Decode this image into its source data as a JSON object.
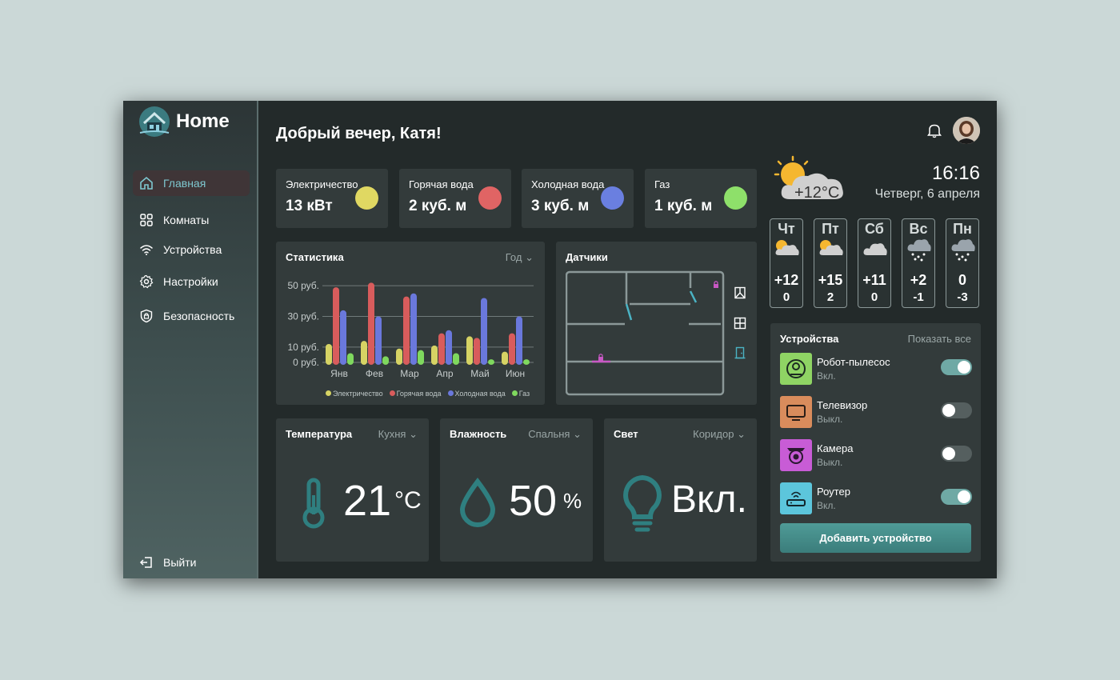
{
  "app": {
    "title": "Home"
  },
  "sidebar": {
    "items": [
      {
        "label": "Главная",
        "icon": "home-icon"
      },
      {
        "label": "Комнаты",
        "icon": "grid-icon"
      },
      {
        "label": "Устройства",
        "icon": "wifi-icon"
      },
      {
        "label": "Настройки",
        "icon": "gear-icon"
      },
      {
        "label": "Безопасность",
        "icon": "shield-icon"
      }
    ],
    "logout": "Выйти"
  },
  "header": {
    "greeting": "Добрый вечер, Катя!"
  },
  "utilities": [
    {
      "label": "Электричество",
      "value": "13 кВт",
      "color": "#e0d862"
    },
    {
      "label": "Горячая вода",
      "value": "2 куб. м",
      "color": "#e06464"
    },
    {
      "label": "Холодная вода",
      "value": "3 куб. м",
      "color": "#6a7fe0"
    },
    {
      "label": "Газ",
      "value": "1 куб. м",
      "color": "#8ee06a"
    }
  ],
  "stats": {
    "title": "Статистика",
    "period": "Год",
    "legend": [
      "Электричество",
      "Горячая вода",
      "Холодная вода",
      "Газ"
    ]
  },
  "chart_data": {
    "type": "bar",
    "categories": [
      "Янв",
      "Фев",
      "Мар",
      "Апр",
      "Май",
      "Июн"
    ],
    "ytick_labels": [
      "0 руб.",
      "10 руб.",
      "30 руб.",
      "50 руб."
    ],
    "yticks": [
      0,
      10,
      30,
      50
    ],
    "ylim": [
      0,
      60
    ],
    "series": [
      {
        "name": "Электричество",
        "color": "#d6d364",
        "values": [
          12,
          14,
          9,
          11,
          17,
          7
        ]
      },
      {
        "name": "Горячая вода",
        "color": "#d85c5c",
        "values": [
          49,
          52,
          43,
          19,
          16,
          19
        ]
      },
      {
        "name": "Холодная вода",
        "color": "#6a78dc",
        "values": [
          34,
          30,
          45,
          21,
          42,
          30
        ]
      },
      {
        "name": "Газ",
        "color": "#7fd85e",
        "values": [
          6,
          4,
          8,
          6,
          2,
          2
        ]
      }
    ]
  },
  "sensors": {
    "title": "Датчики"
  },
  "temperature": {
    "title": "Температура",
    "room": "Кухня",
    "value": "21",
    "unit": "°C"
  },
  "humidity": {
    "title": "Влажность",
    "room": "Спальня",
    "value": "50",
    "unit": "%"
  },
  "light": {
    "title": "Свет",
    "room": "Коридор",
    "value": "Вкл."
  },
  "weather": {
    "current_temp": "+12°C",
    "time": "16:16",
    "date": "Четверг, 6 апреля",
    "days": [
      {
        "name": "Чт",
        "hi": "+12",
        "lo": "0",
        "icon": "partly-cloudy-icon"
      },
      {
        "name": "Пт",
        "hi": "+15",
        "lo": "2",
        "icon": "partly-cloudy-icon"
      },
      {
        "name": "Сб",
        "hi": "+11",
        "lo": "0",
        "icon": "cloud-icon"
      },
      {
        "name": "Вс",
        "hi": "+2",
        "lo": "-1",
        "icon": "snow-cloud-icon"
      },
      {
        "name": "Пн",
        "hi": "0",
        "lo": "-3",
        "icon": "snow-cloud-icon"
      }
    ]
  },
  "devices": {
    "title": "Устройства",
    "show_all": "Показать все",
    "items": [
      {
        "name": "Робот-пылесос",
        "state": "Вкл.",
        "on": true,
        "color": "#8fd464",
        "icon": "robot-vacuum-icon"
      },
      {
        "name": "Телевизор",
        "state": "Выкл.",
        "on": false,
        "color": "#d98c5c",
        "icon": "tv-icon"
      },
      {
        "name": "Камера",
        "state": "Выкл.",
        "on": false,
        "color": "#c85cd6",
        "icon": "camera-icon"
      },
      {
        "name": "Роутер",
        "state": "Вкл.",
        "on": true,
        "color": "#5cc6dc",
        "icon": "router-icon"
      }
    ],
    "add_button": "Добавить устройство"
  }
}
